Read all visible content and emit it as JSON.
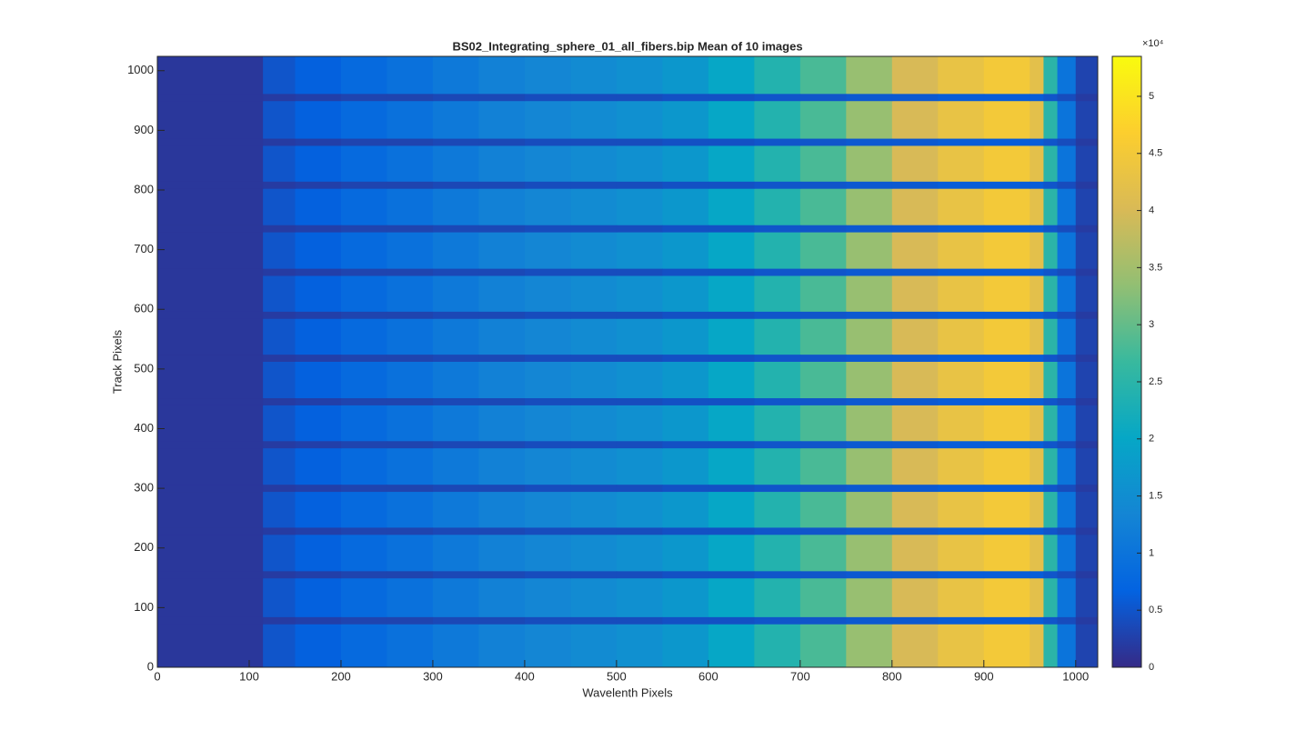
{
  "chart_data": {
    "type": "heatmap",
    "title": "BS02_Integrating_sphere_01_all_fibers.bip  Mean of 10 images",
    "xlabel": "Wavelenth Pixels",
    "ylabel": "Track Pixels",
    "xlim": [
      0,
      1024
    ],
    "ylim": [
      0,
      1024
    ],
    "xticks": [
      0,
      100,
      200,
      300,
      400,
      500,
      600,
      700,
      800,
      900,
      1000
    ],
    "yticks": [
      0,
      100,
      200,
      300,
      400,
      500,
      600,
      700,
      800,
      900,
      1000
    ],
    "x_edges": [
      0,
      115,
      150,
      200,
      250,
      300,
      350,
      400,
      450,
      500,
      550,
      600,
      650,
      700,
      750,
      800,
      850,
      900,
      950,
      965,
      980,
      1000,
      1024
    ],
    "fiber_profile": [
      1500,
      5000,
      6500,
      8000,
      9500,
      11000,
      12500,
      13500,
      14500,
      15500,
      17000,
      20000,
      24000,
      28000,
      34000,
      40000,
      43000,
      45000,
      42000,
      25000,
      10000,
      3000
    ],
    "gap_profile": [
      1500,
      2000,
      2500,
      3000,
      3000,
      3500,
      3500,
      4000,
      4000,
      4000,
      4500,
      4500,
      5000,
      5000,
      5500,
      5500,
      6000,
      6000,
      6000,
      5000,
      4000,
      2000
    ],
    "gaps": [
      [
        72,
        84
      ],
      [
        149,
        161
      ],
      [
        222,
        234
      ],
      [
        294,
        306
      ],
      [
        367,
        379
      ],
      [
        439,
        451
      ],
      [
        512,
        524
      ],
      [
        584,
        596
      ],
      [
        656,
        668
      ],
      [
        729,
        741
      ],
      [
        802,
        814
      ],
      [
        874,
        886
      ],
      [
        949,
        961
      ]
    ],
    "clim": [
      0,
      53500
    ],
    "colormap": [
      "#352a87",
      "#0363e1",
      "#1485d4",
      "#06a7c6",
      "#38b99e",
      "#92bf73",
      "#d9ba56",
      "#fcce2e",
      "#f9fb0e"
    ],
    "colorbar_ticks": [
      {
        "value": 0,
        "label": "0"
      },
      {
        "value": 5000,
        "label": "0.5"
      },
      {
        "value": 10000,
        "label": "1"
      },
      {
        "value": 15000,
        "label": "1.5"
      },
      {
        "value": 20000,
        "label": "2"
      },
      {
        "value": 25000,
        "label": "2.5"
      },
      {
        "value": 30000,
        "label": "3"
      },
      {
        "value": 35000,
        "label": "3.5"
      },
      {
        "value": 40000,
        "label": "4"
      },
      {
        "value": 45000,
        "label": "4.5"
      },
      {
        "value": 50000,
        "label": "5"
      }
    ],
    "colorbar_exponent": "×10⁴"
  }
}
